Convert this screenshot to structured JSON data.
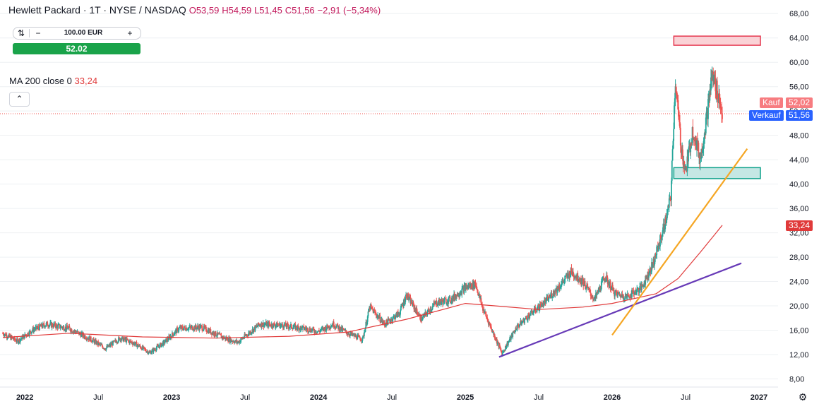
{
  "header": {
    "title": "Hewlett Packard · 1T · NYSE / NASDAQ",
    "open": "O53,59",
    "high": "H54,59",
    "low": "L51,45",
    "close": "C51,56",
    "change": "−2,91 (−5,34%)"
  },
  "order": {
    "quantity": "100.00 EUR",
    "price_button": "52.02"
  },
  "indicator": {
    "label": "MA 200 close 0",
    "value": "33,24"
  },
  "price_tags": {
    "kauf_label": "Kauf",
    "kauf_value": "52,02",
    "verkauf_label": "Verkauf",
    "verkauf_value": "51,56",
    "ma_value": "33,24"
  },
  "colors": {
    "up": "#26a69a",
    "down": "#ef5350",
    "ma": "#e03a3a",
    "kauf": "#f77c80",
    "verkauf": "#2962ff",
    "orange_trend": "#f5a623",
    "purple_trend": "#673ab7",
    "resistance_box": "#f8c3c8",
    "support_box": "#b2dfdb"
  },
  "chart_data": {
    "type": "candlestick",
    "title": "Hewlett Packard · 1T · NYSE / NASDAQ",
    "y_ticks": [
      "8,00",
      "12,00",
      "16,00",
      "20,00",
      "24,00",
      "28,00",
      "32,00",
      "36,00",
      "40,00",
      "44,00",
      "48,00",
      "52,00",
      "56,00",
      "60,00",
      "64,00",
      "68,00"
    ],
    "x_ticks": [
      "2022",
      "Jul",
      "2023",
      "Jul",
      "2024",
      "Jul",
      "2025",
      "Jul",
      "2026",
      "Jul",
      "2027"
    ],
    "ylim": [
      6.2,
      70
    ],
    "price_path": [
      [
        2021.85,
        15.5
      ],
      [
        2021.95,
        14.2
      ],
      [
        2022.05,
        16.0
      ],
      [
        2022.15,
        17.0
      ],
      [
        2022.3,
        16.3
      ],
      [
        2022.45,
        14.5
      ],
      [
        2022.55,
        13.0
      ],
      [
        2022.65,
        14.7
      ],
      [
        2022.75,
        13.8
      ],
      [
        2022.85,
        12.3
      ],
      [
        2022.95,
        14.0
      ],
      [
        2023.05,
        16.3
      ],
      [
        2023.2,
        16.5
      ],
      [
        2023.35,
        14.8
      ],
      [
        2023.45,
        14.0
      ],
      [
        2023.6,
        17.0
      ],
      [
        2023.75,
        16.8
      ],
      [
        2023.9,
        16.3
      ],
      [
        2024.0,
        15.8
      ],
      [
        2024.1,
        17.0
      ],
      [
        2024.2,
        15.5
      ],
      [
        2024.3,
        14.5
      ],
      [
        2024.35,
        19.8
      ],
      [
        2024.45,
        17.0
      ],
      [
        2024.55,
        18.8
      ],
      [
        2024.6,
        21.8
      ],
      [
        2024.7,
        17.8
      ],
      [
        2024.8,
        20.5
      ],
      [
        2024.9,
        21.0
      ],
      [
        2025.0,
        23.0
      ],
      [
        2025.07,
        23.6
      ],
      [
        2025.12,
        19.5
      ],
      [
        2025.2,
        15.0
      ],
      [
        2025.25,
        12.2
      ],
      [
        2025.35,
        16.5
      ],
      [
        2025.45,
        18.8
      ],
      [
        2025.55,
        20.8
      ],
      [
        2025.65,
        23.5
      ],
      [
        2025.72,
        25.6
      ],
      [
        2025.8,
        24.0
      ],
      [
        2025.88,
        21.0
      ],
      [
        2025.95,
        24.8
      ],
      [
        2026.02,
        22.0
      ],
      [
        2026.1,
        21.5
      ],
      [
        2026.2,
        23.0
      ],
      [
        2026.28,
        27.0
      ],
      [
        2026.33,
        31.0
      ],
      [
        2026.37,
        34.5
      ],
      [
        2026.4,
        38.0
      ],
      [
        2026.43,
        57.0
      ],
      [
        2026.47,
        46.0
      ],
      [
        2026.5,
        42.0
      ],
      [
        2026.55,
        49.0
      ],
      [
        2026.6,
        44.0
      ],
      [
        2026.65,
        52.0
      ],
      [
        2026.68,
        58.0
      ],
      [
        2026.72,
        55.0
      ],
      [
        2026.75,
        51.56
      ]
    ],
    "ma200_path": [
      [
        2021.85,
        14.8
      ],
      [
        2022.3,
        15.5
      ],
      [
        2022.8,
        14.9
      ],
      [
        2023.3,
        14.7
      ],
      [
        2023.8,
        15.0
      ],
      [
        2024.2,
        15.7
      ],
      [
        2024.6,
        17.8
      ],
      [
        2025.0,
        20.4
      ],
      [
        2025.2,
        20.0
      ],
      [
        2025.5,
        19.4
      ],
      [
        2025.8,
        19.8
      ],
      [
        2026.0,
        20.4
      ],
      [
        2026.3,
        22.0
      ],
      [
        2026.45,
        24.5
      ],
      [
        2026.6,
        28.8
      ],
      [
        2026.75,
        33.24
      ]
    ],
    "trendlines": [
      {
        "from": [
          2025.23,
          11.6
        ],
        "to": [
          2026.88,
          27.0
        ],
        "color": "purple"
      },
      {
        "from": [
          2026.0,
          15.2
        ],
        "to": [
          2026.92,
          45.8
        ],
        "color": "orange"
      }
    ],
    "zones": [
      {
        "x": [
          2026.42,
          2027.01
        ],
        "y": [
          62.8,
          64.3
        ],
        "kind": "resistance"
      },
      {
        "x": [
          2026.42,
          2027.01
        ],
        "y": [
          40.9,
          42.7
        ],
        "kind": "support"
      }
    ],
    "last_price": 51.56,
    "ask_price": 52.02,
    "ma_last": 33.24,
    "grid": "horizontal",
    "axis_position": "right"
  }
}
